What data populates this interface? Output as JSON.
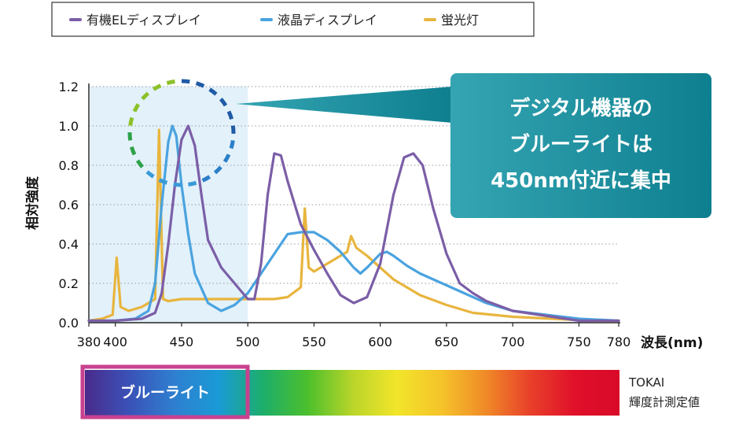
{
  "chart_data": {
    "type": "line",
    "title": "",
    "xlabel": "波長(nm)",
    "ylabel": "相対強度",
    "xlim": [
      380,
      780
    ],
    "ylim": [
      0,
      1.2
    ],
    "xticks": [
      380,
      400,
      450,
      500,
      550,
      600,
      650,
      700,
      750,
      780
    ],
    "yticks": [
      0.0,
      0.2,
      0.4,
      0.6,
      0.8,
      1.0,
      1.2
    ],
    "ytick_labels": [
      "0.0",
      "0.2",
      "0.4",
      "0.6",
      "0.8",
      "1.0",
      "1.2"
    ],
    "grid": "horizontal dotted",
    "highlight_region": [
      380,
      500
    ],
    "legend_position": "top",
    "series": [
      {
        "name": "有機ELディスプレイ",
        "color": "#7b5ea7",
        "points": [
          [
            380,
            0.01
          ],
          [
            400,
            0.01
          ],
          [
            420,
            0.02
          ],
          [
            430,
            0.05
          ],
          [
            435,
            0.15
          ],
          [
            440,
            0.4
          ],
          [
            445,
            0.7
          ],
          [
            450,
            0.93
          ],
          [
            455,
            1.0
          ],
          [
            460,
            0.9
          ],
          [
            465,
            0.65
          ],
          [
            470,
            0.42
          ],
          [
            480,
            0.28
          ],
          [
            490,
            0.2
          ],
          [
            500,
            0.12
          ],
          [
            505,
            0.12
          ],
          [
            510,
            0.3
          ],
          [
            515,
            0.65
          ],
          [
            520,
            0.86
          ],
          [
            525,
            0.85
          ],
          [
            530,
            0.72
          ],
          [
            540,
            0.5
          ],
          [
            550,
            0.37
          ],
          [
            560,
            0.25
          ],
          [
            570,
            0.14
          ],
          [
            580,
            0.1
          ],
          [
            590,
            0.13
          ],
          [
            600,
            0.3
          ],
          [
            610,
            0.65
          ],
          [
            618,
            0.84
          ],
          [
            625,
            0.86
          ],
          [
            632,
            0.8
          ],
          [
            640,
            0.58
          ],
          [
            650,
            0.35
          ],
          [
            660,
            0.2
          ],
          [
            670,
            0.15
          ],
          [
            680,
            0.11
          ],
          [
            700,
            0.06
          ],
          [
            750,
            0.01
          ],
          [
            780,
            0.01
          ]
        ]
      },
      {
        "name": "液晶ディスプレイ",
        "color": "#4aa3df",
        "points": [
          [
            380,
            0.01
          ],
          [
            400,
            0.01
          ],
          [
            415,
            0.02
          ],
          [
            425,
            0.06
          ],
          [
            430,
            0.2
          ],
          [
            435,
            0.6
          ],
          [
            440,
            0.92
          ],
          [
            443,
            1.0
          ],
          [
            446,
            0.95
          ],
          [
            450,
            0.7
          ],
          [
            455,
            0.45
          ],
          [
            460,
            0.25
          ],
          [
            470,
            0.1
          ],
          [
            480,
            0.06
          ],
          [
            490,
            0.09
          ],
          [
            500,
            0.15
          ],
          [
            510,
            0.25
          ],
          [
            520,
            0.35
          ],
          [
            530,
            0.45
          ],
          [
            540,
            0.46
          ],
          [
            550,
            0.46
          ],
          [
            560,
            0.42
          ],
          [
            570,
            0.36
          ],
          [
            580,
            0.28
          ],
          [
            585,
            0.25
          ],
          [
            590,
            0.28
          ],
          [
            600,
            0.35
          ],
          [
            605,
            0.36
          ],
          [
            610,
            0.34
          ],
          [
            620,
            0.29
          ],
          [
            630,
            0.25
          ],
          [
            640,
            0.22
          ],
          [
            650,
            0.19
          ],
          [
            660,
            0.16
          ],
          [
            680,
            0.1
          ],
          [
            700,
            0.06
          ],
          [
            750,
            0.02
          ],
          [
            780,
            0.01
          ]
        ]
      },
      {
        "name": "蛍光灯",
        "color": "#e8b53e",
        "points": [
          [
            380,
            0.01
          ],
          [
            390,
            0.02
          ],
          [
            398,
            0.04
          ],
          [
            401,
            0.33
          ],
          [
            404,
            0.08
          ],
          [
            410,
            0.06
          ],
          [
            420,
            0.08
          ],
          [
            430,
            0.12
          ],
          [
            433,
            0.98
          ],
          [
            436,
            0.12
          ],
          [
            440,
            0.11
          ],
          [
            450,
            0.12
          ],
          [
            460,
            0.12
          ],
          [
            470,
            0.12
          ],
          [
            480,
            0.12
          ],
          [
            490,
            0.12
          ],
          [
            500,
            0.12
          ],
          [
            510,
            0.12
          ],
          [
            520,
            0.12
          ],
          [
            530,
            0.13
          ],
          [
            540,
            0.18
          ],
          [
            543,
            0.58
          ],
          [
            546,
            0.28
          ],
          [
            550,
            0.26
          ],
          [
            560,
            0.3
          ],
          [
            570,
            0.34
          ],
          [
            575,
            0.36
          ],
          [
            578,
            0.44
          ],
          [
            582,
            0.38
          ],
          [
            590,
            0.34
          ],
          [
            600,
            0.28
          ],
          [
            610,
            0.22
          ],
          [
            620,
            0.18
          ],
          [
            630,
            0.14
          ],
          [
            650,
            0.09
          ],
          [
            670,
            0.05
          ],
          [
            700,
            0.03
          ],
          [
            760,
            0.01
          ],
          [
            780,
            0.01
          ]
        ]
      }
    ],
    "callout_lines": [
      "デジタル機器の",
      "ブルーライトは",
      "450nm付近に集中"
    ]
  },
  "spectrum_band": {
    "label": "ブルーライト",
    "stops": [
      "#4a2a8c",
      "#3a52b8",
      "#2f7fd0",
      "#1a9ad6",
      "#1cae6a",
      "#4cbf2c",
      "#b9d52a",
      "#f2e52a",
      "#f5c32a",
      "#f08a28",
      "#e8402a",
      "#e0102a",
      "#d80a28"
    ]
  },
  "source_note": [
    "TOKAI",
    "輝度計測定値"
  ],
  "colors": {
    "highlight_bg": "#e3f1fa",
    "callout_bg": "#1e8f9e",
    "band_frame": "#c7428f"
  }
}
